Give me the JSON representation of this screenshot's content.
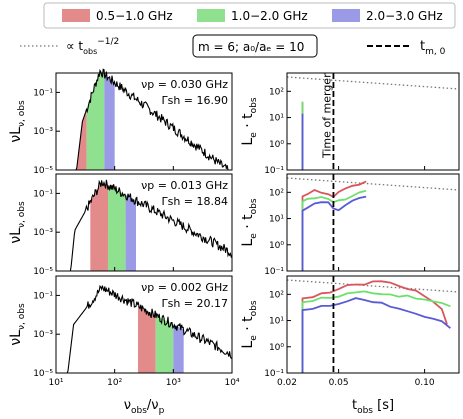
{
  "legend": {
    "bands": [
      {
        "label": "0.5−1.0 GHz",
        "color": "#e38a8a"
      },
      {
        "label": "1.0−2.0 GHz",
        "color": "#8fe08f"
      },
      {
        "label": "2.0−3.0 GHz",
        "color": "#9a9ae6"
      }
    ],
    "powerlaw_label": "∝ t",
    "powerlaw_sub": "obs",
    "powerlaw_sup": "−1/2",
    "params_label": "m = 6; a₀/aₑ = 10",
    "merger_label": "t",
    "merger_sub": "m, 0"
  },
  "axis_labels": {
    "left_y": "νLν, obs",
    "left_x": "νobs/νp",
    "right_y": "Le · tobs",
    "right_x": "tobs [s]",
    "time_of_merger": "Time of merger"
  },
  "chart_data": [
    {
      "type": "line",
      "panel": "spectrum",
      "annotation_nu": "νp = 0.030 GHz",
      "annotation_gamma": "Γsh = 16.90",
      "xscale": "log",
      "yscale": "log",
      "xlim": [
        10,
        10000
      ],
      "ylim": [
        1e-05,
        1
      ],
      "bands_xrange": [
        [
          16.7,
          33.3
        ],
        [
          33.3,
          66.7
        ],
        [
          66.7,
          100
        ]
      ]
    },
    {
      "type": "line",
      "panel": "spectrum",
      "annotation_nu": "νp = 0.013 GHz",
      "annotation_gamma": "Γsh = 18.84",
      "xscale": "log",
      "yscale": "log",
      "xlim": [
        10,
        10000
      ],
      "ylim": [
        1e-05,
        1
      ],
      "bands_xrange": [
        [
          38.5,
          76.9
        ],
        [
          76.9,
          153.8
        ],
        [
          153.8,
          230.8
        ]
      ]
    },
    {
      "type": "line",
      "panel": "spectrum",
      "annotation_nu": "νp = 0.002 GHz",
      "annotation_gamma": "Γsh = 20.17",
      "xscale": "log",
      "yscale": "log",
      "xlim": [
        10,
        10000
      ],
      "ylim": [
        1e-05,
        1
      ],
      "bands_xrange": [
        [
          250,
          500
        ],
        [
          500,
          1000
        ],
        [
          1000,
          1500
        ]
      ]
    },
    {
      "type": "line",
      "panel": "lightcurve",
      "xscale": "linear",
      "yscale": "log",
      "xlim": [
        0.02,
        0.12
      ],
      "ylim": [
        0.1,
        500
      ],
      "series": [
        {
          "name": "0.5−1.0 GHz",
          "x": [
            0.029,
            0.029
          ],
          "y": [
            0.1,
            40
          ]
        },
        {
          "name": "1.0−2.0 GHz",
          "x": [
            0.029,
            0.029
          ],
          "y": [
            0.1,
            40
          ]
        },
        {
          "name": "2.0−3.0 GHz",
          "x": [
            0.029,
            0.029
          ],
          "y": [
            0.1,
            14
          ]
        }
      ]
    },
    {
      "type": "line",
      "panel": "lightcurve",
      "xscale": "linear",
      "yscale": "log",
      "xlim": [
        0.02,
        0.12
      ],
      "ylim": [
        0.1,
        500
      ],
      "series": [
        {
          "name": "0.5−1.0 GHz",
          "x": [
            0.029,
            0.029,
            0.032,
            0.036,
            0.04,
            0.044,
            0.047,
            0.05,
            0.054,
            0.058,
            0.062,
            0.066
          ],
          "y": [
            0.1,
            70,
            95,
            120,
            100,
            85,
            75,
            100,
            130,
            160,
            200,
            260
          ]
        },
        {
          "name": "1.0−2.0 GHz",
          "x": [
            0.029,
            0.029,
            0.032,
            0.036,
            0.04,
            0.044,
            0.047,
            0.05,
            0.054,
            0.058,
            0.062,
            0.066
          ],
          "y": [
            0.1,
            45,
            55,
            65,
            60,
            55,
            45,
            50,
            60,
            80,
            95,
            110
          ]
        },
        {
          "name": "2.0−3.0 GHz",
          "x": [
            0.029,
            0.029,
            0.032,
            0.036,
            0.04,
            0.044,
            0.047,
            0.05,
            0.054,
            0.058,
            0.062,
            0.066
          ],
          "y": [
            0.1,
            20,
            28,
            35,
            40,
            38,
            25,
            20,
            32,
            45,
            55,
            65
          ]
        }
      ]
    },
    {
      "type": "line",
      "panel": "lightcurve",
      "xscale": "linear",
      "yscale": "log",
      "xlim": [
        0.02,
        0.12
      ],
      "ylim": [
        0.1,
        500
      ],
      "series": [
        {
          "name": "0.5−1.0 GHz",
          "x": [
            0.029,
            0.029,
            0.035,
            0.04,
            0.045,
            0.05,
            0.055,
            0.06,
            0.065,
            0.07,
            0.075,
            0.08,
            0.085,
            0.09,
            0.095,
            0.1,
            0.105,
            0.11,
            0.113
          ],
          "y": [
            0.1,
            70,
            80,
            100,
            110,
            150,
            200,
            270,
            260,
            300,
            280,
            250,
            220,
            180,
            130,
            90,
            50,
            25,
            8
          ]
        },
        {
          "name": "1.0−2.0 GHz",
          "x": [
            0.029,
            0.029,
            0.035,
            0.04,
            0.045,
            0.05,
            0.055,
            0.06,
            0.065,
            0.07,
            0.075,
            0.08,
            0.085,
            0.09,
            0.095,
            0.1,
            0.105,
            0.11,
            0.115
          ],
          "y": [
            0.1,
            50,
            60,
            70,
            80,
            90,
            100,
            110,
            120,
            110,
            100,
            95,
            90,
            85,
            75,
            70,
            50,
            45,
            40
          ]
        },
        {
          "name": "2.0−3.0 GHz",
          "x": [
            0.029,
            0.029,
            0.035,
            0.04,
            0.045,
            0.05,
            0.055,
            0.06,
            0.065,
            0.07,
            0.075,
            0.08,
            0.085,
            0.09,
            0.095,
            0.1,
            0.105,
            0.11,
            0.115
          ],
          "y": [
            0.1,
            25,
            30,
            35,
            40,
            45,
            55,
            65,
            60,
            50,
            45,
            35,
            30,
            25,
            20,
            15,
            12,
            10,
            5
          ]
        }
      ]
    }
  ],
  "ticks": {
    "left_x": [
      "10¹",
      "10²",
      "10³",
      "10⁴"
    ],
    "left_y": [
      "10⁻¹",
      "10⁻³",
      "10⁻⁵"
    ],
    "right_y": [
      "10²",
      "10¹",
      "10⁰",
      "10⁻¹"
    ],
    "right_x": [
      "0.02",
      "0.05",
      "0.10"
    ]
  }
}
